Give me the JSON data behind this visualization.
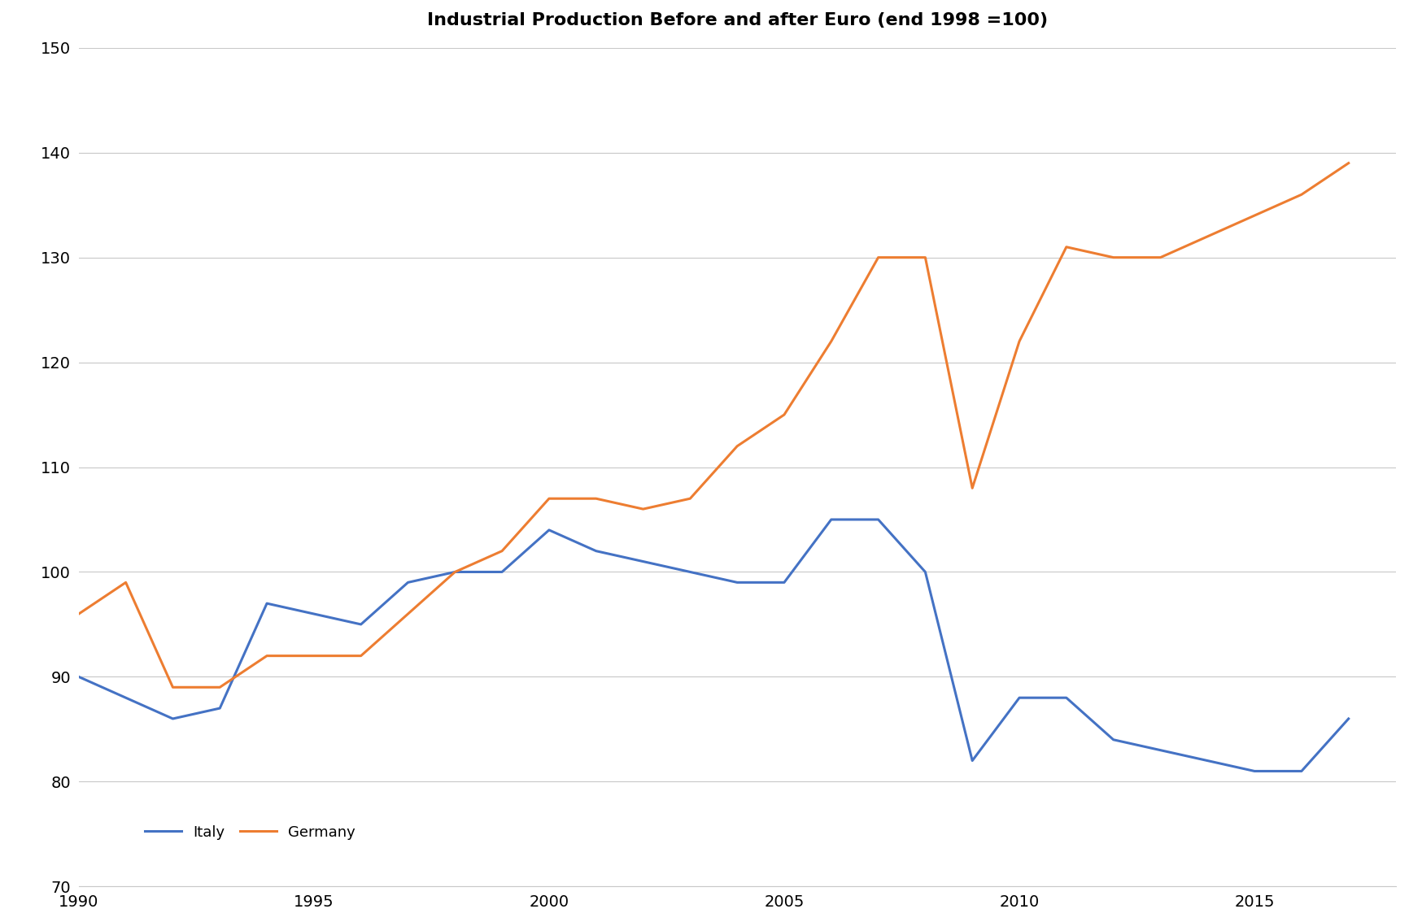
{
  "title": "Industrial Production Before and after Euro (end 1998 =100)",
  "italy_years": [
    1990,
    1991,
    1992,
    1993,
    1994,
    1995,
    1996,
    1997,
    1998,
    1999,
    2000,
    2001,
    2002,
    2003,
    2004,
    2005,
    2006,
    2007,
    2008,
    2009,
    2010,
    2011,
    2012,
    2013,
    2014,
    2015,
    2016,
    2017
  ],
  "italy_values": [
    90,
    88,
    86,
    87,
    97,
    96,
    95,
    99,
    100,
    100,
    104,
    102,
    101,
    100,
    99,
    99,
    105,
    105,
    100,
    82,
    88,
    88,
    84,
    83,
    82,
    81,
    81,
    86
  ],
  "germany_years": [
    1990,
    1991,
    1992,
    1993,
    1994,
    1995,
    1996,
    1997,
    1998,
    1999,
    2000,
    2001,
    2002,
    2003,
    2004,
    2005,
    2006,
    2007,
    2008,
    2009,
    2010,
    2011,
    2012,
    2013,
    2014,
    2015,
    2016,
    2017
  ],
  "germany_values": [
    96,
    99,
    89,
    89,
    92,
    92,
    92,
    96,
    100,
    102,
    107,
    107,
    106,
    107,
    112,
    115,
    122,
    130,
    130,
    108,
    122,
    131,
    130,
    130,
    132,
    134,
    136,
    139
  ],
  "italy_color": "#4472C4",
  "germany_color": "#ED7D31",
  "line_width": 2.2,
  "ylim": [
    70,
    150
  ],
  "xlim": [
    1990,
    2018
  ],
  "yticks": [
    70,
    80,
    90,
    100,
    110,
    120,
    130,
    140,
    150
  ],
  "xticks": [
    1990,
    1995,
    2000,
    2005,
    2010,
    2015
  ],
  "grid_color": "#C8C8C8",
  "background_color": "#FFFFFF",
  "legend_italy": "Italy",
  "legend_germany": "Germany",
  "title_fontsize": 16,
  "tick_fontsize": 14,
  "legend_fontsize": 13
}
